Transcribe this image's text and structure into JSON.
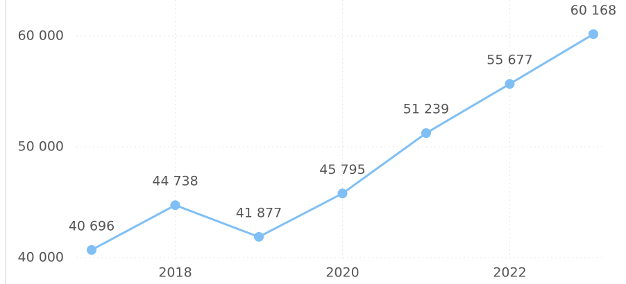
{
  "chart_data": {
    "type": "line",
    "x": [
      2017,
      2018,
      2019,
      2020,
      2021,
      2022,
      2023
    ],
    "series": [
      {
        "name": null,
        "color": "#7fbff5",
        "values": [
          40696,
          44738,
          41877,
          45795,
          51239,
          55677,
          60168
        ],
        "value_labels": [
          "40 696",
          "44 738",
          "41 877",
          "45 795",
          "51 239",
          "55 677",
          "60 168"
        ]
      }
    ],
    "xlim": [
      2017,
      2023
    ],
    "xticks": [
      2018,
      2020,
      2022
    ],
    "ylim": [
      40000,
      60000
    ],
    "yticks": [
      {
        "value": 40000,
        "label": "40 000"
      },
      {
        "value": 50000,
        "label": "50 000"
      },
      {
        "value": 60000,
        "label": "60 000"
      }
    ],
    "grid": true
  }
}
